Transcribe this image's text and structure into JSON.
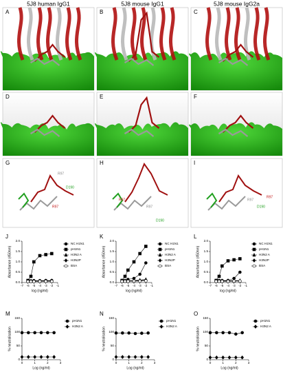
{
  "headers": [
    "5J8 human IgG1",
    "5J8 mouse IgG1",
    "5J8 mouse IgG2a"
  ],
  "panels": [
    {
      "letter": "A"
    },
    {
      "letter": "B"
    },
    {
      "letter": "C"
    },
    {
      "letter": "D"
    },
    {
      "letter": "E"
    },
    {
      "letter": "F"
    },
    {
      "letter": "G",
      "labels": [
        "R97",
        "D190",
        "R97"
      ]
    },
    {
      "letter": "H",
      "labels": [
        "R97",
        "R97",
        "D190"
      ]
    },
    {
      "letter": "I",
      "labels": [
        "R97",
        "R97",
        "D190"
      ]
    }
  ],
  "chart_data": [
    {
      "type": "line",
      "panel": "J",
      "xlabel": "log (ng/ml)",
      "ylabel": "Absorbance (450nm)",
      "x": [
        -6,
        -5.5,
        -5,
        -4,
        -3,
        -2
      ],
      "xlim": [
        -7,
        -1
      ],
      "xticks": [
        -7,
        -6,
        -5,
        -4,
        -3,
        -2,
        -1
      ],
      "ylim": [
        0,
        2
      ],
      "yticks": [
        {
          "value": 0,
          "label": "0.0"
        },
        0.5,
        {
          "value": 1,
          "label": "1.0"
        },
        1.5,
        {
          "value": 2,
          "label": "2.0"
        }
      ],
      "series": [
        {
          "name": "NC H1N1",
          "color": "#000000",
          "marker": "circle",
          "values": [
            0.08,
            0.08,
            0.09,
            0.09,
            0.1,
            0.1
          ]
        },
        {
          "name": "pH1N1",
          "color": "#000000",
          "marker": "square",
          "values": [
            0.1,
            0.3,
            1.0,
            1.3,
            1.35,
            1.4
          ]
        },
        {
          "name": "H3N2 A",
          "color": "#000000",
          "marker": "triangle",
          "values": [
            0.07,
            0.07,
            0.08,
            0.08,
            0.08,
            0.09
          ]
        },
        {
          "name": "H3N2P",
          "color": "#000000",
          "marker": "diamond",
          "values": [
            0.06,
            0.06,
            0.07,
            0.07,
            0.07,
            0.07
          ]
        },
        {
          "name": "BSA",
          "color": "#000000",
          "marker": "open-circle",
          "values": [
            0.05,
            0.05,
            0.05,
            0.06,
            0.06,
            0.06
          ]
        }
      ]
    },
    {
      "type": "line",
      "panel": "K",
      "xlabel": "log (ng/ml)",
      "ylabel": "Absorbance (450nm)",
      "x": [
        -6,
        -5.5,
        -5,
        -4,
        -3,
        -2
      ],
      "xlim": [
        -7,
        -1
      ],
      "xticks": [
        -7,
        -6,
        -5,
        -4,
        -3,
        -2,
        -1
      ],
      "ylim": [
        0,
        2
      ],
      "yticks": [
        {
          "value": 0,
          "label": "0.0"
        },
        0.5,
        {
          "value": 1,
          "label": "1.0"
        },
        1.5,
        {
          "value": 2,
          "label": "2.0"
        }
      ],
      "series": [
        {
          "name": "NC H1N1",
          "color": "#000000",
          "marker": "circle",
          "values": [
            0.1,
            0.1,
            0.15,
            0.2,
            0.4,
            0.95
          ]
        },
        {
          "name": "pH1N1",
          "color": "#000000",
          "marker": "square",
          "values": [
            0.1,
            0.3,
            0.6,
            1.0,
            1.4,
            1.75
          ]
        },
        {
          "name": "H3N2 A",
          "color": "#000000",
          "marker": "triangle",
          "values": [
            0.08,
            0.08,
            0.09,
            0.1,
            0.12,
            0.15
          ]
        },
        {
          "name": "H3N2P",
          "color": "#000000",
          "marker": "diamond",
          "values": [
            0.07,
            0.07,
            0.08,
            0.08,
            0.1,
            0.12
          ]
        },
        {
          "name": "BSA",
          "color": "#000000",
          "marker": "open-circle",
          "values": [
            0.06,
            0.06,
            0.06,
            0.07,
            0.07,
            0.08
          ]
        }
      ]
    },
    {
      "type": "line",
      "panel": "L",
      "xlabel": "log (ng/ml)",
      "ylabel": "Absorbance (450nm)",
      "x": [
        -6,
        -5.5,
        -5,
        -4,
        -3,
        -2
      ],
      "xlim": [
        -7,
        -1
      ],
      "xticks": [
        -7,
        -6,
        -5,
        -4,
        -3,
        -2,
        -1
      ],
      "ylim": [
        0,
        2
      ],
      "yticks": [
        {
          "value": 0,
          "label": "0.0"
        },
        0.5,
        {
          "value": 1,
          "label": "1.0"
        },
        1.5,
        {
          "value": 2,
          "label": "2.0"
        }
      ],
      "series": [
        {
          "name": "NC H1N1",
          "color": "#000000",
          "marker": "circle",
          "values": [
            0.1,
            0.1,
            0.1,
            0.1,
            0.2,
            0.5
          ]
        },
        {
          "name": "pH1N1",
          "color": "#000000",
          "marker": "square",
          "values": [
            0.1,
            0.3,
            0.8,
            1.05,
            1.1,
            1.15
          ]
        },
        {
          "name": "H3N2 A",
          "color": "#000000",
          "marker": "triangle",
          "values": [
            0.08,
            0.08,
            0.08,
            0.09,
            0.09,
            0.1
          ]
        },
        {
          "name": "H3N2P",
          "color": "#000000",
          "marker": "diamond",
          "values": [
            0.07,
            0.07,
            0.07,
            0.08,
            0.08,
            0.08
          ]
        },
        {
          "name": "BSA",
          "color": "#000000",
          "marker": "open-circle",
          "values": [
            0.06,
            0.06,
            0.06,
            0.06,
            0.07,
            0.07
          ]
        }
      ]
    },
    {
      "type": "line",
      "panel": "M",
      "xlabel": "Log (ng/ml)",
      "ylabel": "% neutralisation",
      "x": [
        0,
        0.5,
        1,
        1.5,
        2,
        2.5
      ],
      "xlim": [
        0,
        3
      ],
      "xticks": [
        0,
        1,
        2,
        3
      ],
      "ylim": [
        0,
        150
      ],
      "yticks": [
        0,
        50,
        100,
        150
      ],
      "series": [
        {
          "name": "pH1N1",
          "color": "#000000",
          "marker": "circle",
          "values": [
            98,
            98,
            98,
            98,
            98,
            98
          ]
        },
        {
          "name": "H3N2 A",
          "color": "#000000",
          "marker": "diamond",
          "values": [
            10,
            10,
            10,
            10,
            10,
            10
          ]
        }
      ]
    },
    {
      "type": "line",
      "panel": "N",
      "xlabel": "Log (ng/ml)",
      "ylabel": "% neutralisation",
      "x": [
        0,
        0.5,
        1,
        1.5,
        2,
        2.5
      ],
      "xlim": [
        0,
        3
      ],
      "xticks": [
        0,
        1,
        2,
        3
      ],
      "ylim": [
        0,
        150
      ],
      "yticks": [
        0,
        50,
        100,
        150
      ],
      "series": [
        {
          "name": "pH1N1",
          "color": "#000000",
          "marker": "circle",
          "values": [
            97,
            97,
            97,
            95,
            96,
            97
          ]
        },
        {
          "name": "H3N2 A",
          "color": "#000000",
          "marker": "diamond",
          "values": [
            10,
            10,
            10,
            10,
            10,
            10
          ]
        }
      ]
    },
    {
      "type": "line",
      "panel": "O",
      "xlabel": "Log (ng/ml)",
      "ylabel": "% neutralisation",
      "x": [
        0,
        0.5,
        1,
        1.5,
        2,
        2.5
      ],
      "xlim": [
        0,
        3
      ],
      "xticks": [
        0,
        1,
        2,
        3
      ],
      "ylim": [
        0,
        150
      ],
      "yticks": [
        0,
        50,
        100,
        150
      ],
      "series": [
        {
          "name": "pH1N1",
          "color": "#000000",
          "marker": "circle",
          "values": [
            98,
            98,
            98,
            98,
            93,
            98
          ]
        },
        {
          "name": "H3N2 A",
          "color": "#000000",
          "marker": "diamond",
          "values": [
            8,
            8,
            8,
            8,
            8,
            8
          ]
        }
      ]
    }
  ]
}
